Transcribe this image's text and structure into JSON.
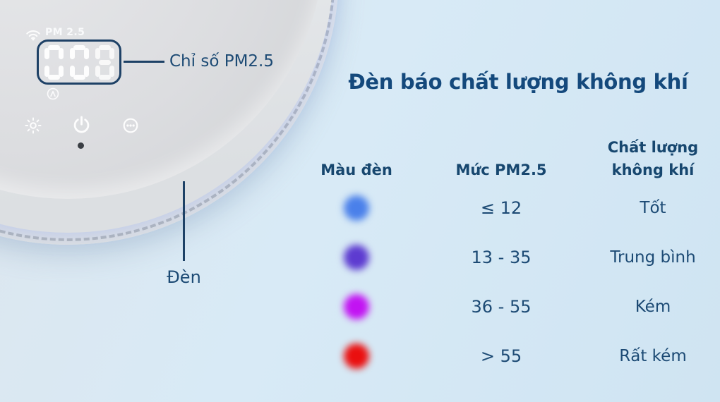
{
  "colors": {
    "navy_text": "#1c4a74",
    "title_navy": "#14497c",
    "callout_line": "#1d4166",
    "glow_blue": "#9db8f4"
  },
  "device": {
    "status": {
      "wifi_icon": "wifi",
      "pm_label": "PM 2.5"
    },
    "display": {
      "value": "008"
    },
    "mode_icon": "auto",
    "buttons": [
      {
        "icon": "brightness"
      },
      {
        "icon": "power"
      },
      {
        "icon": "fan-speed"
      }
    ],
    "callouts": {
      "display_label": "Chỉ số PM2.5",
      "light_label": "Đèn"
    }
  },
  "panel": {
    "title": "Đèn báo chất lượng không khí",
    "table": {
      "headers": {
        "color": "Màu đèn",
        "pm": "Mức PM2.5",
        "quality": "Chất lượng không khí"
      },
      "rows": [
        {
          "color_name": "blue",
          "light_color": "#4a80ea",
          "pm": "≤ 12",
          "quality": "Tốt"
        },
        {
          "color_name": "purple",
          "light_color": "#5d3bd0",
          "pm": "13 - 35",
          "quality": "Trung bình"
        },
        {
          "color_name": "magenta",
          "light_color": "#c213f2",
          "pm": "36 - 55",
          "quality": "Kém"
        },
        {
          "color_name": "red",
          "light_color": "#ea0f0f",
          "pm": "> 55",
          "quality": "Rất kém"
        }
      ]
    }
  }
}
